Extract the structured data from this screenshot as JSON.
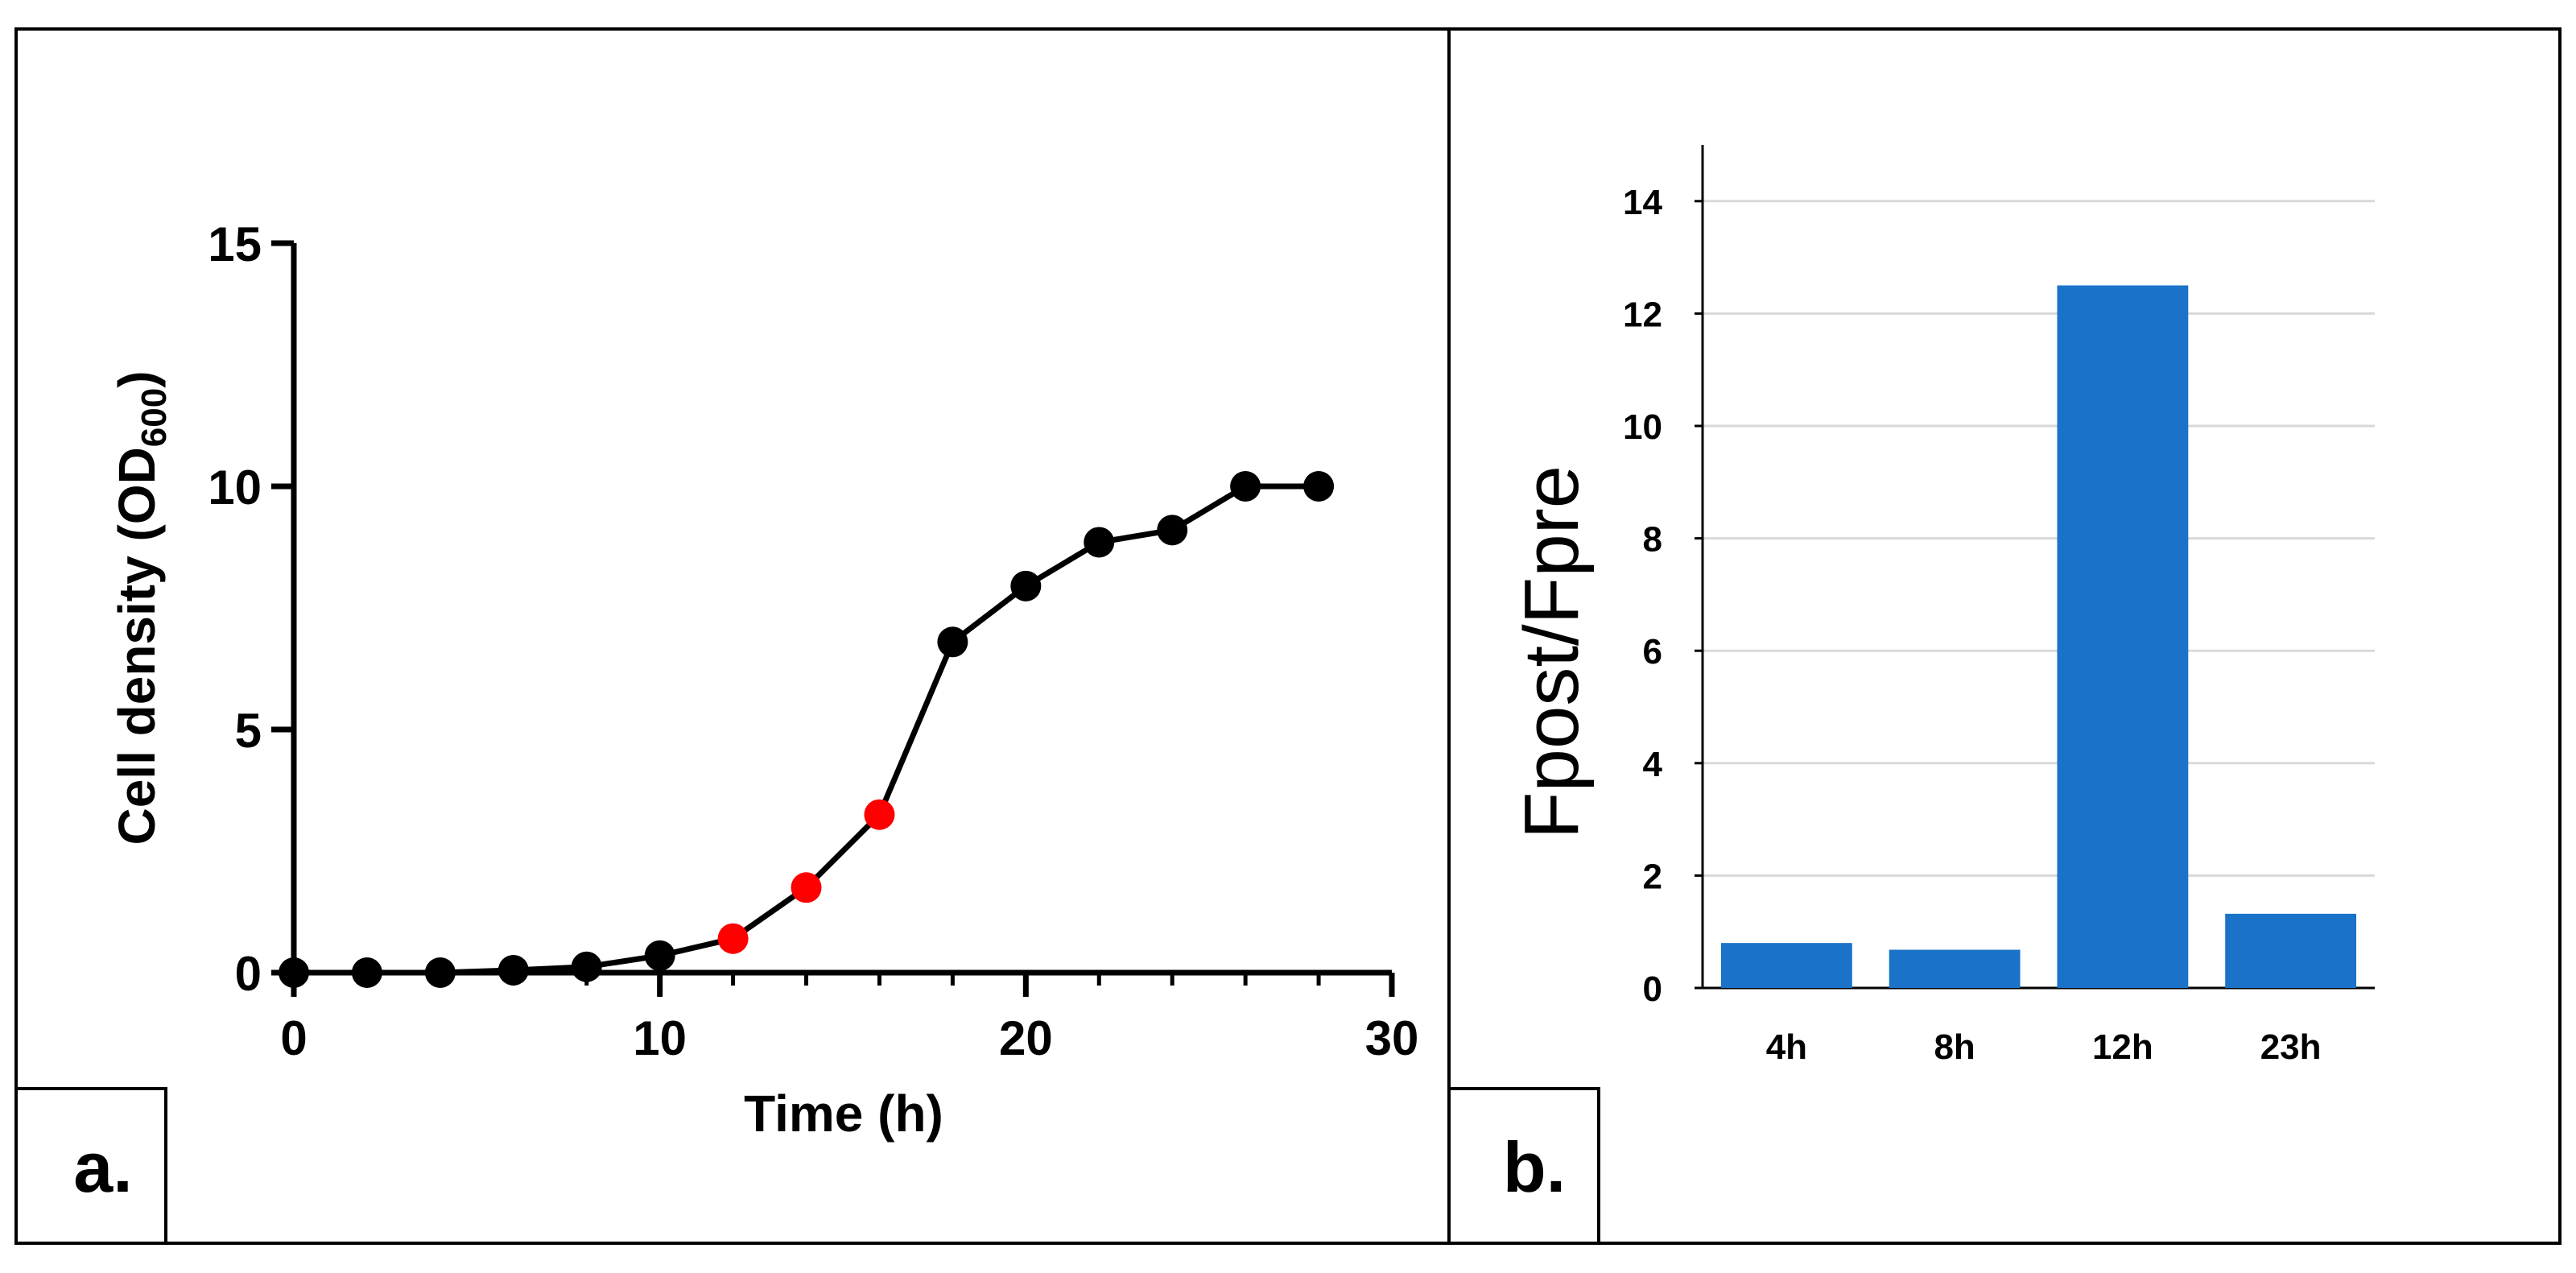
{
  "panels": {
    "a": {
      "label": "a."
    },
    "b": {
      "label": "b."
    }
  },
  "colors": {
    "frame": "#000000",
    "line": "#000000",
    "point_default": "#000000",
    "point_highlight": "#ff0000",
    "bar": "#1a73c8",
    "grid": "#d9d9d9"
  },
  "chart_data": [
    {
      "type": "line",
      "title": "",
      "xlabel": "Time (h)",
      "ylabel": "Cell density (OD",
      "ylabel_subscript": "600",
      "ylabel_close": ")",
      "xlim": [
        0,
        30
      ],
      "ylim": [
        0,
        15
      ],
      "xticks": [
        0,
        10,
        20,
        30
      ],
      "yticks": [
        0,
        5,
        10,
        15
      ],
      "xtick_labels": [
        "0",
        "10",
        "20",
        "30"
      ],
      "ytick_labels": [
        "0",
        "5",
        "10",
        "15"
      ],
      "x_minor_step": 2,
      "grid": false,
      "series": [
        {
          "name": "Cell density",
          "x": [
            0,
            2,
            4,
            6,
            8,
            10,
            12,
            14,
            16,
            18,
            20,
            22,
            24,
            26,
            28
          ],
          "y": [
            0.0,
            0.0,
            0.0,
            0.05,
            0.12,
            0.35,
            0.7,
            1.75,
            3.25,
            6.8,
            7.95,
            8.85,
            9.1,
            10.0,
            10.0
          ],
          "highlighted": [
            false,
            false,
            false,
            false,
            false,
            false,
            true,
            true,
            true,
            false,
            false,
            false,
            false,
            false,
            false
          ]
        }
      ]
    },
    {
      "type": "bar",
      "title": "",
      "xlabel": "",
      "ylabel": "Fpost/Fpre",
      "categories": [
        "4h",
        "8h",
        "12h",
        "23h"
      ],
      "values": [
        0.8,
        0.68,
        12.5,
        1.32
      ],
      "ylim": [
        0,
        15
      ],
      "yticks": [
        0,
        2,
        4,
        6,
        8,
        10,
        12,
        14
      ],
      "ytick_labels": [
        "0",
        "2",
        "4",
        "6",
        "8",
        "10",
        "12",
        "14"
      ],
      "grid": true
    }
  ]
}
